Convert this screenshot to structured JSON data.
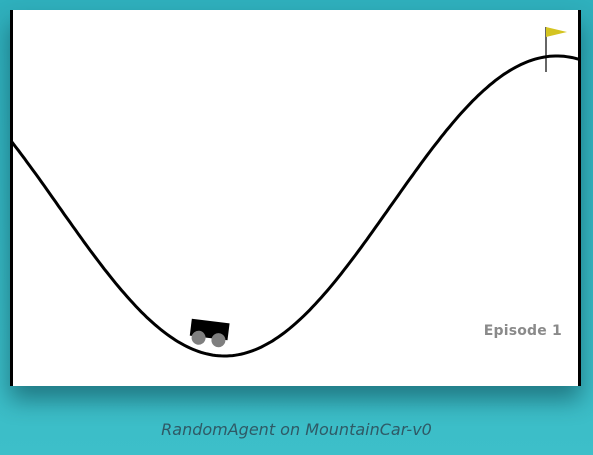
{
  "game": {
    "episode_label": "Episode 1",
    "caption": "RandomAgent on MountainCar-v0"
  },
  "colors": {
    "background": "#36b6c2",
    "canvas": "#ffffff",
    "track": "#000000",
    "car_body": "#000000",
    "car_wheels": "#7f7f7f",
    "flag": "#d4c421",
    "episode_text": "#8a8a8a",
    "caption_text": "#2f5a66"
  }
}
